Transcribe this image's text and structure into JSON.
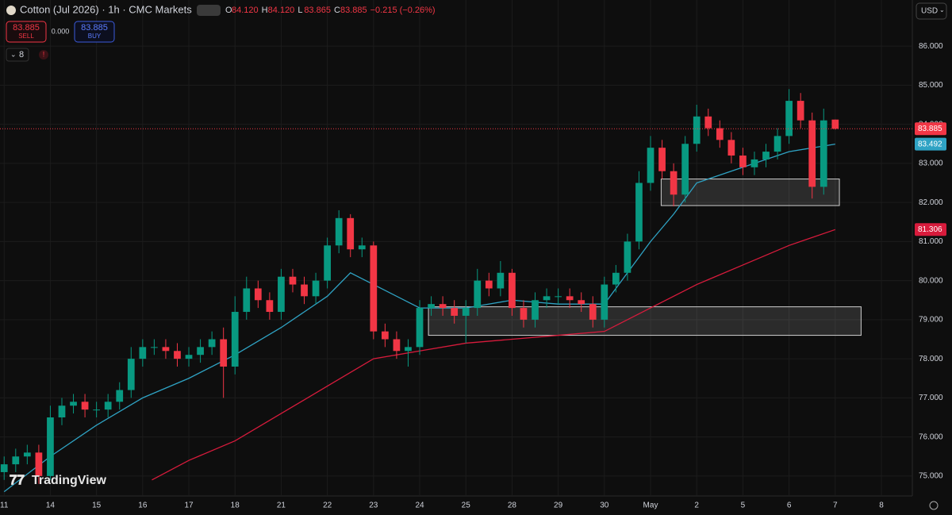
{
  "chart_data": {
    "type": "candlestick",
    "title": "Cotton (Jul 2026) · 1h · CMC Markets",
    "ohlc": [
      {
        "key": "O",
        "value": "84.120"
      },
      {
        "key": "H",
        "value": "84.120"
      },
      {
        "key": "L",
        "value": "83.865"
      },
      {
        "key": "C",
        "value": "83.885"
      }
    ],
    "change": "−0.215 (−0.26%)",
    "sell": {
      "price": "83.885",
      "label": "SELL"
    },
    "spread": "0.000",
    "buy": {
      "price": "83.885",
      "label": "BUY"
    },
    "indicators": "8",
    "currency": "USD",
    "logo": "TradingView",
    "up_color": "#089981",
    "down_color": "#f23645",
    "grid": true,
    "xlim": [
      -0.09,
      19.67
    ],
    "ylim": [
      74.49,
      87.18
    ],
    "yticks": [
      {
        "value": 75,
        "label": "75.000"
      },
      {
        "value": 76,
        "label": "76.000"
      },
      {
        "value": 77,
        "label": "77.000"
      },
      {
        "value": 78,
        "label": "78.000"
      },
      {
        "value": 79,
        "label": "79.000"
      },
      {
        "value": 80,
        "label": "80.000"
      },
      {
        "value": 81,
        "label": "81.000"
      },
      {
        "value": 82,
        "label": "82.000"
      },
      {
        "value": 83,
        "label": "83.000"
      },
      {
        "value": 84,
        "label": "84.000"
      },
      {
        "value": 85,
        "label": "85.000"
      },
      {
        "value": 86,
        "label": "86.000"
      }
    ],
    "xticks": [
      {
        "value": 0,
        "label": "11"
      },
      {
        "value": 1,
        "label": "14"
      },
      {
        "value": 2,
        "label": "15"
      },
      {
        "value": 3,
        "label": "16"
      },
      {
        "value": 4,
        "label": "17"
      },
      {
        "value": 5,
        "label": "18"
      },
      {
        "value": 6,
        "label": "21"
      },
      {
        "value": 7,
        "label": "22"
      },
      {
        "value": 8,
        "label": "23"
      },
      {
        "value": 9,
        "label": "24"
      },
      {
        "value": 10,
        "label": "25"
      },
      {
        "value": 11,
        "label": "28"
      },
      {
        "value": 12,
        "label": "29"
      },
      {
        "value": 13,
        "label": "30"
      },
      {
        "value": 14,
        "label": "May"
      },
      {
        "value": 15,
        "label": "2"
      },
      {
        "value": 16,
        "label": "5"
      },
      {
        "value": 17,
        "label": "6"
      },
      {
        "value": 18,
        "label": "7"
      },
      {
        "value": 19,
        "label": "8"
      }
    ],
    "x": [
      0,
      0.25,
      0.5,
      0.75,
      1,
      1.25,
      1.5,
      1.75,
      2,
      2.25,
      2.5,
      2.75,
      3,
      3.25,
      3.5,
      3.75,
      4,
      4.25,
      4.5,
      4.75,
      5,
      5.25,
      5.5,
      5.75,
      6,
      6.25,
      6.5,
      6.75,
      7,
      7.25,
      7.5,
      7.75,
      8,
      8.25,
      8.5,
      8.75,
      9,
      9.25,
      9.5,
      9.75,
      10,
      10.25,
      10.5,
      10.75,
      11,
      11.25,
      11.5,
      11.75,
      12,
      12.25,
      12.5,
      12.75,
      13,
      13.25,
      13.5,
      13.75,
      14,
      14.25,
      14.5,
      14.75,
      15,
      15.25,
      15.5,
      15.75,
      16,
      16.25,
      16.5,
      16.75,
      17,
      17.25,
      17.5,
      17.75,
      18
    ],
    "open": [
      75.1,
      75.3,
      75.5,
      75.6,
      75.0,
      76.5,
      76.8,
      76.9,
      76.7,
      76.7,
      76.9,
      77.2,
      78.0,
      78.3,
      78.3,
      78.2,
      78.0,
      78.1,
      78.3,
      78.5,
      77.8,
      79.2,
      79.8,
      79.5,
      79.2,
      80.1,
      79.9,
      79.6,
      80.0,
      80.9,
      81.6,
      80.8,
      80.9,
      78.7,
      78.5,
      78.2,
      78.3,
      79.3,
      79.4,
      79.3,
      79.1,
      79.3,
      80.0,
      79.8,
      80.2,
      79.3,
      79.0,
      79.5,
      79.6,
      79.6,
      79.5,
      79.4,
      79.0,
      79.9,
      80.2,
      81.0,
      82.5,
      83.4,
      82.8,
      82.2,
      83.5,
      84.2,
      83.9,
      83.6,
      83.2,
      82.9,
      83.1,
      83.3,
      83.7,
      84.6,
      84.1,
      82.4,
      84.12
    ],
    "high": [
      75.5,
      75.7,
      75.8,
      75.8,
      76.8,
      77.0,
      77.1,
      77.1,
      76.9,
      77.1,
      77.4,
      78.3,
      78.5,
      78.5,
      78.5,
      78.4,
      78.3,
      78.5,
      78.7,
      78.8,
      79.6,
      80.1,
      80.0,
      79.7,
      80.3,
      80.3,
      80.1,
      80.2,
      81.1,
      81.8,
      81.7,
      81.1,
      81.0,
      78.9,
      78.7,
      78.5,
      79.5,
      79.6,
      79.6,
      79.5,
      79.5,
      80.3,
      80.2,
      80.5,
      80.3,
      79.5,
      79.7,
      79.8,
      79.8,
      79.8,
      79.7,
      79.6,
      80.1,
      80.4,
      81.2,
      82.8,
      83.7,
      83.6,
      83.0,
      83.7,
      84.5,
      84.4,
      84.1,
      83.8,
      83.4,
      83.3,
      83.5,
      83.9,
      84.9,
      84.8,
      84.3,
      84.4,
      84.12
    ],
    "low": [
      74.9,
      75.1,
      75.3,
      74.8,
      74.9,
      76.3,
      76.6,
      76.5,
      76.5,
      76.5,
      76.7,
      77.0,
      77.8,
      78.1,
      78.0,
      77.8,
      77.8,
      77.9,
      78.1,
      77.0,
      77.6,
      79.0,
      79.3,
      79.0,
      79.0,
      79.7,
      79.4,
      79.4,
      79.8,
      80.7,
      80.6,
      80.6,
      78.5,
      78.3,
      78.0,
      77.8,
      78.1,
      79.1,
      79.1,
      78.9,
      78.4,
      79.1,
      79.6,
      79.6,
      79.1,
      78.8,
      78.8,
      79.3,
      79.4,
      79.3,
      79.2,
      78.8,
      78.8,
      79.7,
      80.0,
      80.8,
      82.3,
      82.6,
      81.9,
      82.0,
      83.3,
      83.7,
      83.4,
      83.0,
      82.7,
      82.7,
      82.9,
      83.1,
      83.5,
      83.9,
      82.1,
      82.2,
      83.865
    ],
    "close": [
      75.3,
      75.5,
      75.6,
      75.0,
      76.5,
      76.8,
      76.9,
      76.7,
      76.7,
      76.9,
      77.2,
      78.0,
      78.3,
      78.3,
      78.2,
      78.0,
      78.1,
      78.3,
      78.5,
      77.8,
      79.2,
      79.8,
      79.5,
      79.2,
      80.1,
      79.9,
      79.6,
      80.0,
      80.9,
      81.6,
      80.8,
      80.9,
      78.7,
      78.5,
      78.2,
      78.3,
      79.3,
      79.4,
      79.3,
      79.1,
      79.3,
      80.0,
      79.8,
      80.2,
      79.3,
      79.0,
      79.5,
      79.6,
      79.6,
      79.5,
      79.4,
      79.0,
      79.9,
      80.2,
      81.0,
      82.5,
      83.4,
      82.8,
      82.2,
      83.5,
      84.2,
      83.9,
      83.6,
      83.2,
      82.9,
      83.1,
      83.3,
      83.7,
      84.6,
      84.1,
      82.4,
      84.1,
      83.885
    ],
    "overlays": [
      {
        "color": "#2fa3c4",
        "x": [
          0,
          1,
          2,
          3,
          4,
          5,
          6,
          7,
          7.5,
          8,
          9,
          10,
          11,
          12,
          13,
          13.5,
          14,
          14.5,
          15,
          16,
          17,
          18
        ],
        "values": [
          74.6,
          75.5,
          76.3,
          77.0,
          77.5,
          78.1,
          78.8,
          79.6,
          80.2,
          79.9,
          79.3,
          79.3,
          79.5,
          79.4,
          79.4,
          80.2,
          81.0,
          81.7,
          82.5,
          82.9,
          83.3,
          83.492
        ]
      },
      {
        "color": "#d81b3c",
        "x": [
          3.2,
          4,
          5,
          6,
          7,
          8,
          9,
          10,
          11,
          12,
          13,
          14,
          15,
          16,
          17,
          18
        ],
        "values": [
          74.9,
          75.4,
          75.9,
          76.6,
          77.3,
          78.0,
          78.2,
          78.4,
          78.5,
          78.6,
          78.7,
          79.3,
          79.9,
          80.4,
          80.9,
          81.306
        ]
      }
    ],
    "zones": [
      {
        "x": [
          9.19,
          18.56
        ],
        "y": [
          78.6,
          79.33
        ]
      },
      {
        "x": [
          14.23,
          18.09
        ],
        "y": [
          81.92,
          82.6
        ]
      }
    ],
    "price_labels": [
      {
        "value": 83.885,
        "color": "#f23645"
      },
      {
        "value": 83.492,
        "color": "#2fa3c4"
      },
      {
        "value": 81.306,
        "color": "#d81b3c"
      }
    ]
  }
}
